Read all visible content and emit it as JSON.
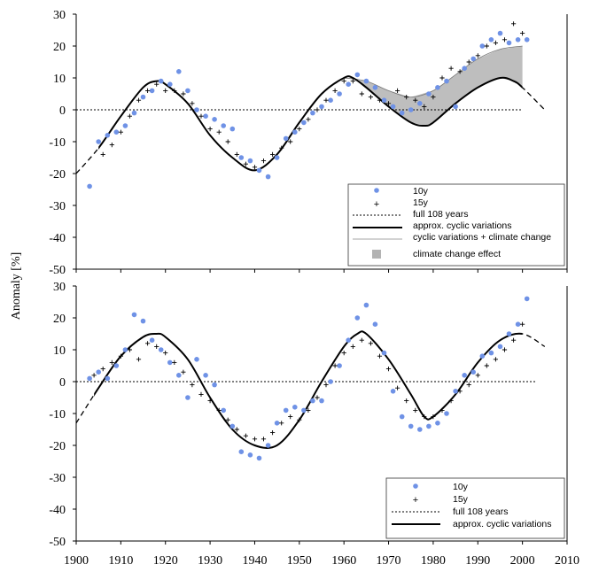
{
  "chart_data": [
    {
      "type": "scatter",
      "panel": "top",
      "ylabel": "Anomaly [%]",
      "ylim": [
        -50,
        30
      ],
      "xlim": [
        1900,
        2010
      ],
      "yticks": [
        "30",
        "20",
        "10",
        "0",
        "-10",
        "-20",
        "-30",
        "-40",
        "-50"
      ],
      "grid": false,
      "legend_position": "bottom-right",
      "legend": [
        "10y",
        "15y",
        "full 108 years",
        "approx. cyclic variations",
        "cyclic variations + climate change",
        "climate change effect"
      ],
      "series": [
        {
          "name": "10y",
          "marker": "dot",
          "color": "#6f92e6",
          "points": [
            [
              1903,
              -24
            ],
            [
              1905,
              -10
            ],
            [
              1907,
              -8
            ],
            [
              1909,
              -7
            ],
            [
              1911,
              -5
            ],
            [
              1913,
              -1
            ],
            [
              1915,
              4
            ],
            [
              1917,
              6
            ],
            [
              1919,
              9
            ],
            [
              1921,
              8
            ],
            [
              1923,
              12
            ],
            [
              1925,
              6
            ],
            [
              1927,
              0
            ],
            [
              1929,
              -2
            ],
            [
              1931,
              -3
            ],
            [
              1933,
              -5
            ],
            [
              1935,
              -6
            ],
            [
              1937,
              -15
            ],
            [
              1939,
              -16
            ],
            [
              1941,
              -19
            ],
            [
              1943,
              -21
            ],
            [
              1945,
              -15
            ],
            [
              1947,
              -9
            ],
            [
              1949,
              -7
            ],
            [
              1951,
              -4
            ],
            [
              1953,
              -1
            ],
            [
              1955,
              1
            ],
            [
              1957,
              3
            ],
            [
              1959,
              5
            ],
            [
              1961,
              8
            ],
            [
              1963,
              11
            ],
            [
              1965,
              9
            ],
            [
              1967,
              7
            ],
            [
              1969,
              3
            ],
            [
              1971,
              1
            ],
            [
              1973,
              -1
            ],
            [
              1975,
              0
            ],
            [
              1977,
              2
            ],
            [
              1979,
              5
            ],
            [
              1981,
              7
            ],
            [
              1983,
              9
            ],
            [
              1985,
              1
            ],
            [
              1987,
              13
            ],
            [
              1989,
              16
            ],
            [
              1991,
              20
            ],
            [
              1993,
              22
            ],
            [
              1995,
              24
            ],
            [
              1997,
              21
            ],
            [
              1999,
              22
            ],
            [
              2001,
              22
            ]
          ]
        },
        {
          "name": "15y",
          "marker": "plus",
          "color": "#000000",
          "points": [
            [
              1906,
              -14
            ],
            [
              1908,
              -11
            ],
            [
              1910,
              -7
            ],
            [
              1912,
              -2
            ],
            [
              1914,
              3
            ],
            [
              1916,
              6
            ],
            [
              1918,
              8
            ],
            [
              1920,
              6
            ],
            [
              1922,
              6
            ],
            [
              1924,
              5
            ],
            [
              1926,
              2
            ],
            [
              1928,
              -2
            ],
            [
              1930,
              -6
            ],
            [
              1932,
              -7
            ],
            [
              1934,
              -10
            ],
            [
              1936,
              -14
            ],
            [
              1938,
              -17
            ],
            [
              1940,
              -18
            ],
            [
              1942,
              -16
            ],
            [
              1944,
              -14
            ],
            [
              1946,
              -12
            ],
            [
              1948,
              -10
            ],
            [
              1950,
              -6
            ],
            [
              1952,
              -3
            ],
            [
              1954,
              0
            ],
            [
              1956,
              3
            ],
            [
              1958,
              6
            ],
            [
              1960,
              9
            ],
            [
              1962,
              9
            ],
            [
              1964,
              5
            ],
            [
              1966,
              4
            ],
            [
              1968,
              3
            ],
            [
              1970,
              2
            ],
            [
              1972,
              6
            ],
            [
              1974,
              4
            ],
            [
              1976,
              3
            ],
            [
              1978,
              1
            ],
            [
              1980,
              4
            ],
            [
              1982,
              10
            ],
            [
              1984,
              13
            ],
            [
              1986,
              12
            ],
            [
              1988,
              15
            ],
            [
              1990,
              17
            ],
            [
              1992,
              20
            ],
            [
              1994,
              21
            ],
            [
              1996,
              22
            ],
            [
              1998,
              27
            ],
            [
              2000,
              24
            ]
          ]
        },
        {
          "name": "full 108 years",
          "type": "reference-line",
          "value": 0,
          "x_range": [
            1900,
            2000
          ]
        },
        {
          "name": "approx. cyclic variations",
          "type": "line",
          "points": [
            [
              1900,
              -20
            ],
            [
              1905,
              -12
            ],
            [
              1910,
              -2
            ],
            [
              1915,
              7
            ],
            [
              1918,
              9
            ],
            [
              1920,
              8
            ],
            [
              1925,
              2
            ],
            [
              1930,
              -8
            ],
            [
              1935,
              -15
            ],
            [
              1940,
              -19
            ],
            [
              1945,
              -14
            ],
            [
              1950,
              -4
            ],
            [
              1955,
              5
            ],
            [
              1960,
              10
            ],
            [
              1962,
              10
            ],
            [
              1965,
              7
            ],
            [
              1970,
              1
            ],
            [
              1975,
              -4
            ],
            [
              1978,
              -5
            ],
            [
              1980,
              -4
            ],
            [
              1985,
              2
            ],
            [
              1990,
              7
            ],
            [
              1995,
              10
            ],
            [
              1998,
              9
            ],
            [
              2000,
              7
            ],
            [
              2005,
              0
            ]
          ]
        },
        {
          "name": "cyclic variations + climate change",
          "type": "line",
          "points": [
            [
              1960,
              10
            ],
            [
              1965,
              9
            ],
            [
              1970,
              6
            ],
            [
              1975,
              4
            ],
            [
              1980,
              6
            ],
            [
              1985,
              11
            ],
            [
              1990,
              16
            ],
            [
              1995,
              19
            ],
            [
              2000,
              20
            ]
          ]
        }
      ]
    },
    {
      "type": "scatter",
      "panel": "bottom",
      "ylim": [
        -50,
        30
      ],
      "xlim": [
        1900,
        2010
      ],
      "xticks": [
        "1900",
        "1910",
        "1920",
        "1930",
        "1940",
        "1950",
        "1960",
        "1970",
        "1980",
        "1990",
        "2000",
        "2010"
      ],
      "yticks": [
        "30",
        "20",
        "10",
        "0",
        "-10",
        "-20",
        "-30",
        "-40",
        "-50"
      ],
      "grid": false,
      "legend_position": "bottom-right",
      "legend": [
        "10y",
        "15y",
        "full 108 years",
        "approx. cyclic variations"
      ],
      "series": [
        {
          "name": "10y",
          "marker": "dot",
          "color": "#6f92e6",
          "points": [
            [
              1903,
              1
            ],
            [
              1905,
              3
            ],
            [
              1907,
              1
            ],
            [
              1909,
              5
            ],
            [
              1911,
              10
            ],
            [
              1913,
              21
            ],
            [
              1915,
              19
            ],
            [
              1917,
              13
            ],
            [
              1919,
              10
            ],
            [
              1921,
              6
            ],
            [
              1923,
              2
            ],
            [
              1925,
              -5
            ],
            [
              1927,
              7
            ],
            [
              1929,
              2
            ],
            [
              1931,
              -1
            ],
            [
              1933,
              -9
            ],
            [
              1935,
              -14
            ],
            [
              1937,
              -22
            ],
            [
              1939,
              -23
            ],
            [
              1941,
              -24
            ],
            [
              1943,
              -20
            ],
            [
              1945,
              -13
            ],
            [
              1947,
              -9
            ],
            [
              1949,
              -8
            ],
            [
              1951,
              -9
            ],
            [
              1953,
              -6
            ],
            [
              1955,
              -6
            ],
            [
              1957,
              0
            ],
            [
              1959,
              5
            ],
            [
              1961,
              13
            ],
            [
              1963,
              20
            ],
            [
              1965,
              24
            ],
            [
              1967,
              18
            ],
            [
              1969,
              9
            ],
            [
              1971,
              -3
            ],
            [
              1973,
              -11
            ],
            [
              1975,
              -14
            ],
            [
              1977,
              -15
            ],
            [
              1979,
              -14
            ],
            [
              1981,
              -13
            ],
            [
              1983,
              -10
            ],
            [
              1985,
              -3
            ],
            [
              1987,
              2
            ],
            [
              1989,
              3
            ],
            [
              1991,
              8
            ],
            [
              1993,
              9
            ],
            [
              1995,
              11
            ],
            [
              1997,
              15
            ],
            [
              1999,
              18
            ],
            [
              2001,
              26
            ]
          ]
        },
        {
          "name": "15y",
          "marker": "plus",
          "color": "#000000",
          "points": [
            [
              1904,
              2
            ],
            [
              1906,
              4
            ],
            [
              1908,
              6
            ],
            [
              1910,
              8
            ],
            [
              1912,
              10
            ],
            [
              1914,
              7
            ],
            [
              1916,
              12
            ],
            [
              1918,
              11
            ],
            [
              1920,
              9
            ],
            [
              1922,
              6
            ],
            [
              1924,
              3
            ],
            [
              1926,
              -1
            ],
            [
              1928,
              -4
            ],
            [
              1930,
              -6
            ],
            [
              1932,
              -9
            ],
            [
              1934,
              -12
            ],
            [
              1936,
              -15
            ],
            [
              1938,
              -17
            ],
            [
              1940,
              -18
            ],
            [
              1942,
              -18
            ],
            [
              1944,
              -16
            ],
            [
              1946,
              -13
            ],
            [
              1948,
              -11
            ],
            [
              1950,
              -12
            ],
            [
              1952,
              -9
            ],
            [
              1954,
              -5
            ],
            [
              1956,
              -1
            ],
            [
              1958,
              5
            ],
            [
              1960,
              9
            ],
            [
              1962,
              11
            ],
            [
              1964,
              13
            ],
            [
              1966,
              12
            ],
            [
              1968,
              8
            ],
            [
              1970,
              4
            ],
            [
              1972,
              -2
            ],
            [
              1974,
              -6
            ],
            [
              1976,
              -9
            ],
            [
              1978,
              -11
            ],
            [
              1980,
              -11
            ],
            [
              1982,
              -9
            ],
            [
              1984,
              -6
            ],
            [
              1986,
              -3
            ],
            [
              1988,
              -1
            ],
            [
              1990,
              2
            ],
            [
              1992,
              5
            ],
            [
              1994,
              7
            ],
            [
              1996,
              10
            ],
            [
              1998,
              13
            ],
            [
              2000,
              18
            ]
          ]
        },
        {
          "name": "full 108 years",
          "type": "reference-line",
          "value": 0,
          "x_range": [
            1900,
            2003
          ]
        },
        {
          "name": "approx. cyclic variations",
          "type": "line",
          "points": [
            [
              1900,
              -13
            ],
            [
              1905,
              -2
            ],
            [
              1910,
              8
            ],
            [
              1915,
              14
            ],
            [
              1918,
              15
            ],
            [
              1920,
              14
            ],
            [
              1925,
              7
            ],
            [
              1930,
              -5
            ],
            [
              1935,
              -15
            ],
            [
              1940,
              -20
            ],
            [
              1945,
              -20
            ],
            [
              1950,
              -12
            ],
            [
              1955,
              0
            ],
            [
              1960,
              11
            ],
            [
              1963,
              15
            ],
            [
              1965,
              15
            ],
            [
              1970,
              7
            ],
            [
              1975,
              -4
            ],
            [
              1978,
              -11
            ],
            [
              1980,
              -11
            ],
            [
              1985,
              -4
            ],
            [
              1990,
              6
            ],
            [
              1995,
              13
            ],
            [
              2000,
              15
            ],
            [
              2005,
              11
            ]
          ]
        }
      ]
    }
  ]
}
